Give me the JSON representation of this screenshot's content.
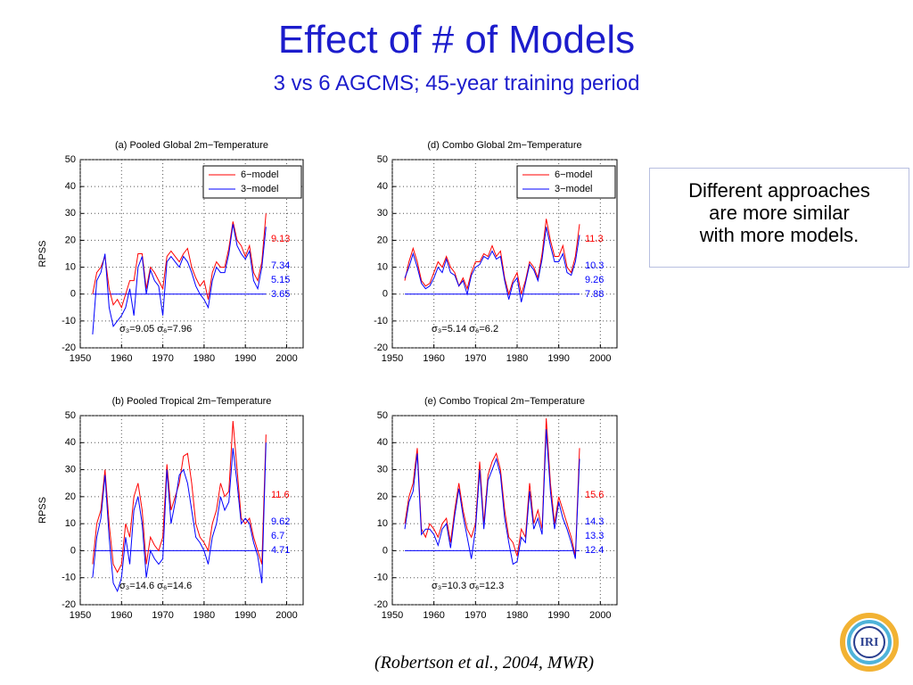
{
  "slide": {
    "title": "Effect of # of Models",
    "subtitle": "3 vs 6 AGCMS; 45-year training period",
    "note": [
      "Different approaches",
      "are more similar",
      "with more models."
    ],
    "citation": "(Robertson et al., 2004, MWR)",
    "logo": "IRI"
  },
  "chart_data": [
    {
      "type": "line",
      "title": "(a) Pooled Global 2m−Temperature",
      "ylabel": "RPSS",
      "x": [
        1953,
        1954,
        1955,
        1956,
        1957,
        1958,
        1959,
        1960,
        1961,
        1962,
        1963,
        1964,
        1965,
        1966,
        1967,
        1968,
        1969,
        1970,
        1971,
        1972,
        1973,
        1974,
        1975,
        1976,
        1977,
        1978,
        1979,
        1980,
        1981,
        1982,
        1983,
        1984,
        1985,
        1986,
        1987,
        1988,
        1989,
        1990,
        1991,
        1992,
        1993,
        1994,
        1995
      ],
      "series": [
        {
          "name": "6−model",
          "color": "#ff0000",
          "values": [
            0,
            8,
            10,
            14,
            2,
            -4,
            -2,
            -5,
            0,
            5,
            5,
            15,
            15,
            2,
            10,
            8,
            5,
            2,
            14,
            16,
            14,
            12,
            15,
            17,
            10,
            6,
            3,
            5,
            -2,
            8,
            12,
            10,
            10,
            17,
            27,
            20,
            18,
            14,
            18,
            8,
            5,
            12,
            30
          ]
        },
        {
          "name": "3−model",
          "color": "#0000ff",
          "values": [
            -15,
            5,
            8,
            15,
            -5,
            -12,
            -10,
            -8,
            -5,
            2,
            -8,
            10,
            14,
            0,
            9,
            5,
            3,
            -8,
            12,
            14,
            12,
            10,
            14,
            12,
            8,
            3,
            0,
            -2,
            -5,
            5,
            10,
            8,
            8,
            15,
            26,
            18,
            15,
            13,
            16,
            5,
            2,
            10,
            25
          ]
        }
      ],
      "reference_line": 0,
      "annotations": [
        {
          "text": "9.13",
          "color": "#ff0000"
        },
        {
          "text": "7.34",
          "color": "#0000ff"
        },
        {
          "text": "5.15",
          "color": "#0000ff"
        },
        {
          "text": "3.65",
          "color": "#0000ff"
        }
      ],
      "sigma_label": "σ₃=9.05   σ₆=7.96",
      "xlim": [
        1950,
        2004
      ],
      "xticks": [
        1950,
        1960,
        1970,
        1980,
        1990,
        2000
      ],
      "ylim": [
        -20,
        50
      ],
      "yticks": [
        -20,
        -10,
        0,
        10,
        20,
        30,
        40,
        50
      ],
      "grid": true,
      "legend": "upper right"
    },
    {
      "type": "line",
      "title": "(d) Combo Global 2m−Temperature",
      "x": [
        1953,
        1954,
        1955,
        1956,
        1957,
        1958,
        1959,
        1960,
        1961,
        1962,
        1963,
        1964,
        1965,
        1966,
        1967,
        1968,
        1969,
        1970,
        1971,
        1972,
        1973,
        1974,
        1975,
        1976,
        1977,
        1978,
        1979,
        1980,
        1981,
        1982,
        1983,
        1984,
        1985,
        1986,
        1987,
        1988,
        1989,
        1990,
        1991,
        1992,
        1993,
        1994,
        1995
      ],
      "series": [
        {
          "name": "6−model",
          "color": "#ff0000",
          "values": [
            5,
            12,
            17,
            12,
            5,
            3,
            4,
            8,
            12,
            10,
            14,
            10,
            8,
            3,
            6,
            2,
            8,
            12,
            12,
            15,
            14,
            18,
            14,
            16,
            6,
            0,
            5,
            8,
            0,
            5,
            12,
            10,
            6,
            15,
            28,
            20,
            14,
            14,
            18,
            10,
            8,
            14,
            26
          ]
        },
        {
          "name": "3−model",
          "color": "#0000ff",
          "values": [
            6,
            10,
            15,
            10,
            4,
            2,
            3,
            6,
            10,
            8,
            13,
            8,
            7,
            3,
            5,
            0,
            7,
            10,
            11,
            14,
            13,
            16,
            13,
            14,
            5,
            -2,
            4,
            6,
            -3,
            4,
            11,
            9,
            5,
            13,
            25,
            18,
            12,
            12,
            15,
            8,
            7,
            12,
            22
          ]
        }
      ],
      "reference_line": 0,
      "annotations": [
        {
          "text": "11.3",
          "color": "#ff0000"
        },
        {
          "text": "10.3",
          "color": "#0000ff"
        },
        {
          "text": "9.26",
          "color": "#0000ff"
        },
        {
          "text": "7.88",
          "color": "#0000ff"
        }
      ],
      "sigma_label": "σ₃=5.14   σ₆=6.2",
      "xlim": [
        1950,
        2004
      ],
      "xticks": [
        1950,
        1960,
        1970,
        1980,
        1990,
        2000
      ],
      "ylim": [
        -20,
        50
      ],
      "yticks": [
        -20,
        -10,
        0,
        10,
        20,
        30,
        40,
        50
      ],
      "grid": true,
      "legend": "upper right"
    },
    {
      "type": "line",
      "title": "(b) Pooled Tropical 2m−Temperature",
      "ylabel": "RPSS",
      "x": [
        1953,
        1954,
        1955,
        1956,
        1957,
        1958,
        1959,
        1960,
        1961,
        1962,
        1963,
        1964,
        1965,
        1966,
        1967,
        1968,
        1969,
        1970,
        1971,
        1972,
        1973,
        1974,
        1975,
        1976,
        1977,
        1978,
        1979,
        1980,
        1981,
        1982,
        1983,
        1984,
        1985,
        1986,
        1987,
        1988,
        1989,
        1990,
        1991,
        1992,
        1993,
        1994,
        1995
      ],
      "series": [
        {
          "name": "6−model",
          "color": "#ff0000",
          "values": [
            -5,
            10,
            15,
            30,
            10,
            -5,
            -8,
            -5,
            10,
            5,
            20,
            25,
            15,
            -5,
            5,
            2,
            0,
            5,
            32,
            15,
            20,
            25,
            35,
            36,
            25,
            10,
            5,
            3,
            0,
            10,
            15,
            25,
            20,
            22,
            48,
            30,
            12,
            10,
            12,
            5,
            0,
            -5,
            43
          ]
        },
        {
          "name": "3−model",
          "color": "#0000ff",
          "values": [
            -10,
            5,
            12,
            28,
            5,
            -12,
            -15,
            -10,
            5,
            -5,
            15,
            20,
            10,
            -10,
            0,
            -3,
            -5,
            -3,
            30,
            10,
            18,
            28,
            30,
            25,
            15,
            5,
            3,
            0,
            -5,
            5,
            10,
            20,
            15,
            18,
            38,
            25,
            10,
            12,
            10,
            3,
            -2,
            -12,
            40
          ]
        }
      ],
      "reference_line": 0,
      "annotations": [
        {
          "text": "11.6",
          "color": "#ff0000"
        },
        {
          "text": "9.62",
          "color": "#0000ff"
        },
        {
          "text": "6.7",
          "color": "#0000ff"
        },
        {
          "text": "4.71",
          "color": "#0000ff"
        }
      ],
      "sigma_label": "σ₃=14.6   σ₆=14.6",
      "xlim": [
        1950,
        2004
      ],
      "xticks": [
        1950,
        1960,
        1970,
        1980,
        1990,
        2000
      ],
      "ylim": [
        -20,
        50
      ],
      "yticks": [
        -20,
        -10,
        0,
        10,
        20,
        30,
        40,
        50
      ],
      "grid": true
    },
    {
      "type": "line",
      "title": "(e) Combo Tropical 2m−Temperature",
      "x": [
        1953,
        1954,
        1955,
        1956,
        1957,
        1958,
        1959,
        1960,
        1961,
        1962,
        1963,
        1964,
        1965,
        1966,
        1967,
        1968,
        1969,
        1970,
        1971,
        1972,
        1973,
        1974,
        1975,
        1976,
        1977,
        1978,
        1979,
        1980,
        1981,
        1982,
        1983,
        1984,
        1985,
        1986,
        1987,
        1988,
        1989,
        1990,
        1991,
        1992,
        1993,
        1994,
        1995
      ],
      "series": [
        {
          "name": "6−model",
          "color": "#ff0000",
          "values": [
            10,
            20,
            25,
            38,
            8,
            5,
            10,
            8,
            5,
            10,
            12,
            3,
            15,
            25,
            15,
            8,
            5,
            10,
            33,
            10,
            28,
            33,
            36,
            30,
            15,
            5,
            3,
            -2,
            8,
            5,
            25,
            10,
            15,
            8,
            49,
            25,
            10,
            20,
            15,
            10,
            5,
            -2,
            38
          ]
        },
        {
          "name": "3−model",
          "color": "#0000ff",
          "values": [
            8,
            18,
            22,
            36,
            6,
            8,
            8,
            6,
            2,
            8,
            10,
            1,
            13,
            23,
            13,
            5,
            -3,
            8,
            30,
            8,
            26,
            30,
            34,
            28,
            12,
            3,
            -5,
            -4,
            5,
            3,
            22,
            8,
            12,
            6,
            45,
            22,
            8,
            18,
            12,
            8,
            3,
            -3,
            34
          ]
        }
      ],
      "reference_line": 0,
      "annotations": [
        {
          "text": "15.6",
          "color": "#ff0000"
        },
        {
          "text": "14.3",
          "color": "#0000ff"
        },
        {
          "text": "13.3",
          "color": "#0000ff"
        },
        {
          "text": "12.4",
          "color": "#0000ff"
        }
      ],
      "sigma_label": "σ₃=10.3   σ₆=12.3",
      "xlim": [
        1950,
        2004
      ],
      "xticks": [
        1950,
        1960,
        1970,
        1980,
        1990,
        2000
      ],
      "ylim": [
        -20,
        50
      ],
      "yticks": [
        -20,
        -10,
        0,
        10,
        20,
        30,
        40,
        50
      ],
      "grid": true
    }
  ]
}
